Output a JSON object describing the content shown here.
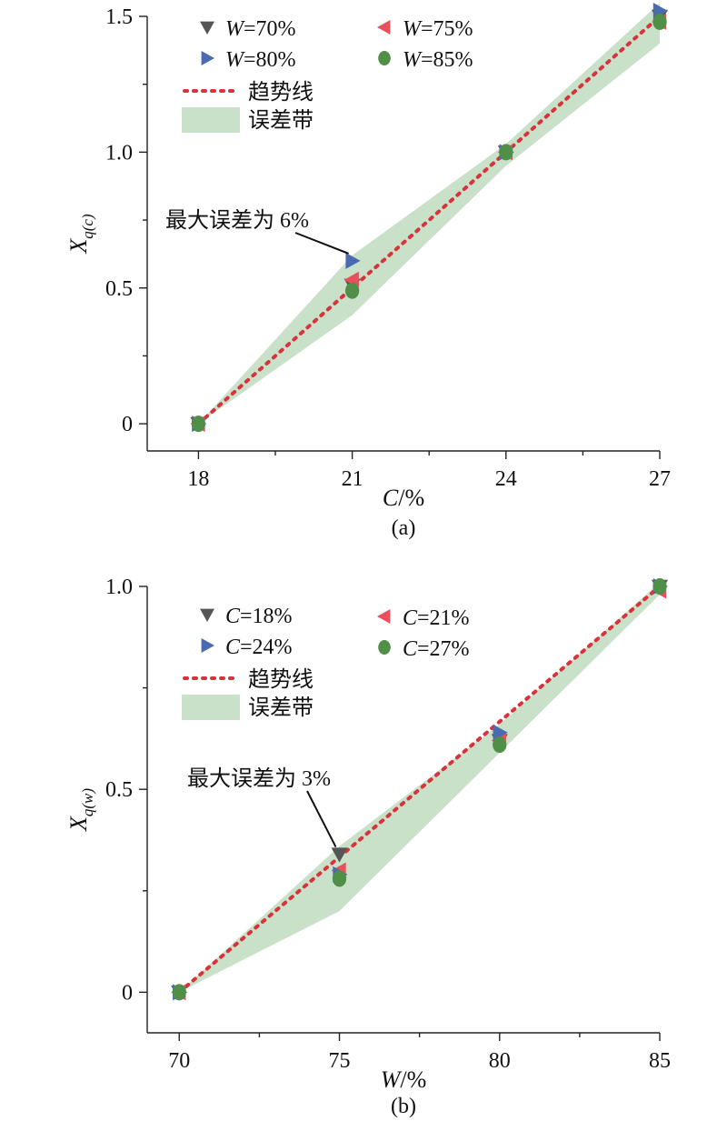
{
  "chart_data": [
    {
      "type": "scatter",
      "caption": "(a)",
      "xlabel": "C/%",
      "ylabel": "X_q(c)",
      "x_ticks": [
        "18",
        "21",
        "24",
        "27"
      ],
      "y_ticks": [
        "0",
        "0.5",
        "1.0",
        "1.5"
      ],
      "xlim": [
        17,
        27
      ],
      "ylim": [
        -0.1,
        1.5
      ],
      "x": [
        18,
        21,
        24,
        27
      ],
      "series": [
        {
          "name": "W=70%",
          "marker": "triangle-down",
          "color": "#555555",
          "values": [
            0,
            0.51,
            1.0,
            1.5
          ]
        },
        {
          "name": "W=75%",
          "marker": "triangle-left",
          "color": "#e8505b",
          "values": [
            0,
            0.53,
            1.0,
            1.48
          ]
        },
        {
          "name": "W=80%",
          "marker": "triangle-right",
          "color": "#4a6bb0",
          "values": [
            0,
            0.6,
            1.0,
            1.52
          ]
        },
        {
          "name": "W=85%",
          "marker": "circle",
          "color": "#4f8f48",
          "values": [
            0,
            0.49,
            1.0,
            1.48
          ]
        }
      ],
      "trend": {
        "name": "趋势线",
        "color": "#d9323a",
        "x": [
          18,
          27
        ],
        "y": [
          0,
          1.5
        ]
      },
      "band": {
        "name": "误差带",
        "color": "#c9e0c9",
        "upper": [
          0,
          0.62,
          1.03,
          1.55
        ],
        "lower": [
          0,
          0.4,
          0.95,
          1.4
        ]
      },
      "annotation": {
        "text": "最大误差为 6%",
        "target_x": 21,
        "target_y": 0.6
      },
      "legend_position": "top-left",
      "grid": false
    },
    {
      "type": "scatter",
      "caption": "(b)",
      "xlabel": "W/%",
      "ylabel": "X_q(w)",
      "x_ticks": [
        "70",
        "75",
        "80",
        "85"
      ],
      "y_ticks": [
        "0",
        "0.5",
        "1.0"
      ],
      "xlim": [
        69,
        85
      ],
      "ylim": [
        -0.1,
        1.0
      ],
      "x": [
        70,
        75,
        80,
        85
      ],
      "series": [
        {
          "name": "C=18%",
          "marker": "triangle-down",
          "color": "#555555",
          "values": [
            0,
            0.34,
            0.62,
            1.0
          ]
        },
        {
          "name": "C=21%",
          "marker": "triangle-left",
          "color": "#e8505b",
          "values": [
            0,
            0.3,
            0.62,
            0.99
          ]
        },
        {
          "name": "C=24%",
          "marker": "triangle-right",
          "color": "#4a6bb0",
          "values": [
            0,
            0.29,
            0.64,
            1.0
          ]
        },
        {
          "name": "C=27%",
          "marker": "circle",
          "color": "#4f8f48",
          "values": [
            0,
            0.28,
            0.61,
            1.0
          ]
        }
      ],
      "trend": {
        "name": "趋势线",
        "color": "#d9323a",
        "x": [
          70,
          85
        ],
        "y": [
          0,
          1.0
        ]
      },
      "band": {
        "name": "误差带",
        "color": "#c9e0c9",
        "upper": [
          0,
          0.36,
          0.66,
          1.01
        ],
        "lower": [
          0,
          0.2,
          0.59,
          0.98
        ]
      },
      "annotation": {
        "text": "最大误差为 3%",
        "target_x": 75,
        "target_y": 0.34
      },
      "legend_position": "top-left",
      "grid": false
    }
  ]
}
